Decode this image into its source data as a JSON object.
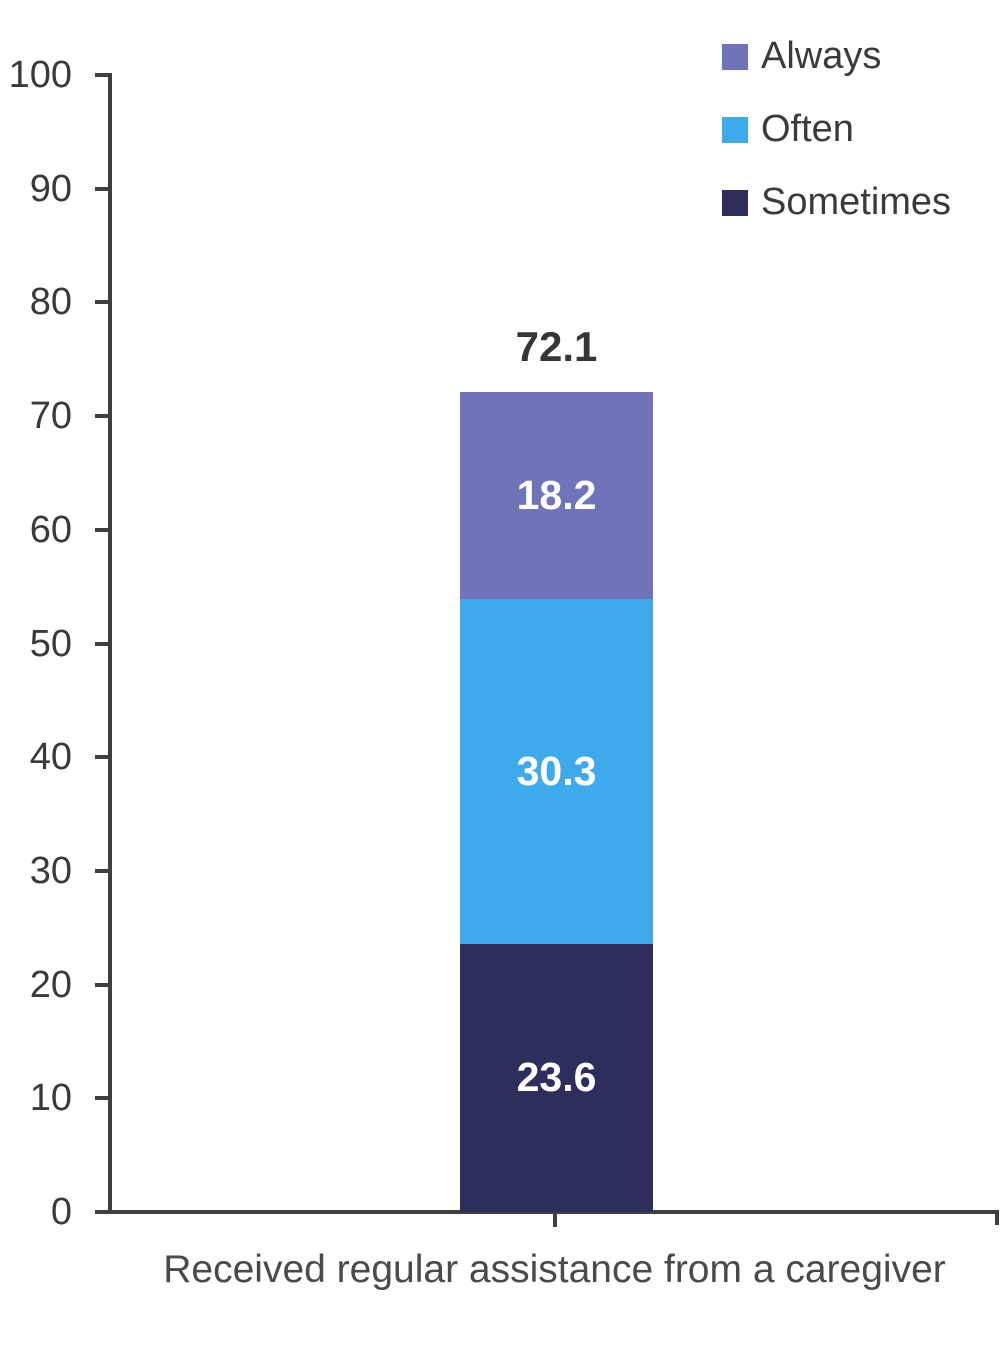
{
  "chart_data": {
    "type": "bar",
    "stacked": true,
    "title": "",
    "categories": [
      "Received regular assistance from a caregiver"
    ],
    "series": [
      {
        "name": "Sometimes",
        "values": [
          23.6
        ],
        "color": "#2e2e5c"
      },
      {
        "name": "Often",
        "values": [
          30.3
        ],
        "color": "#3eaaec"
      },
      {
        "name": "Always",
        "values": [
          18.2
        ],
        "color": "#7073b8"
      }
    ],
    "total_label": "72.1",
    "xlabel": "Received regular assistance from a caregiver",
    "ylabel": "",
    "ylim": [
      0,
      100
    ],
    "yticks": [
      0,
      10,
      20,
      30,
      40,
      50,
      60,
      70,
      80,
      90,
      100
    ],
    "grid": false,
    "legend_position": "top-right"
  },
  "legend": {
    "items": [
      {
        "label": "Always",
        "color": "#7073b8"
      },
      {
        "label": "Often",
        "color": "#3eaaec"
      },
      {
        "label": "Sometimes",
        "color": "#2e2e5c"
      }
    ]
  },
  "colors": {
    "axis": "#3f3f3f",
    "tick_text": "#3a3a3a",
    "value_text": "#ffffff",
    "total_text": "#363636",
    "xlabel_text": "#4a4a4a"
  }
}
